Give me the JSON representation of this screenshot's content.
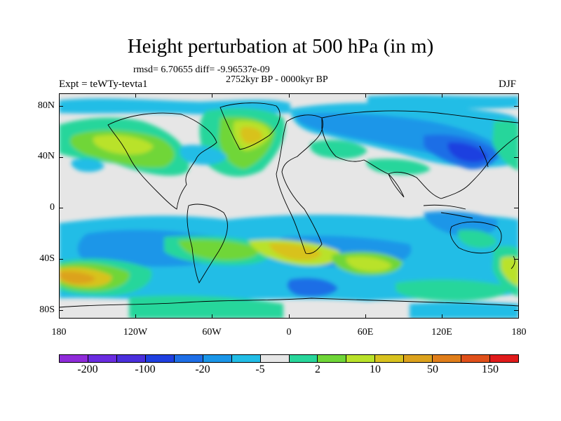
{
  "title": "Height perturbation at 500 hPa (in m)",
  "stats": "rmsd= 6.70655 diff= -9.96537e-09",
  "period": "2752kyr BP - 0000kyr BP",
  "experiment": "Expt = teWTy-tevta1",
  "season": "DJF",
  "map": {
    "lat_labels": [
      "80N",
      "40N",
      "0",
      "40S",
      "80S"
    ],
    "lon_labels": [
      "180",
      "120W",
      "60W",
      "0",
      "60E",
      "120E",
      "180"
    ],
    "background_color": "#e6e6e6",
    "coastline_color": "#000000"
  },
  "colorbar": {
    "colors": [
      "#8f2bd9",
      "#6a2ce0",
      "#4a2fdc",
      "#1f3fe0",
      "#1e6ee6",
      "#1a96e8",
      "#22bde6",
      "#e6e6e6",
      "#28d69b",
      "#6fd638",
      "#b9e22a",
      "#d8c21f",
      "#dca21d",
      "#e07e1a",
      "#e0501a",
      "#e01b1b"
    ],
    "labels": [
      "-200",
      "-100",
      "-20",
      "-5",
      "2",
      "10",
      "50",
      "150"
    ]
  }
}
